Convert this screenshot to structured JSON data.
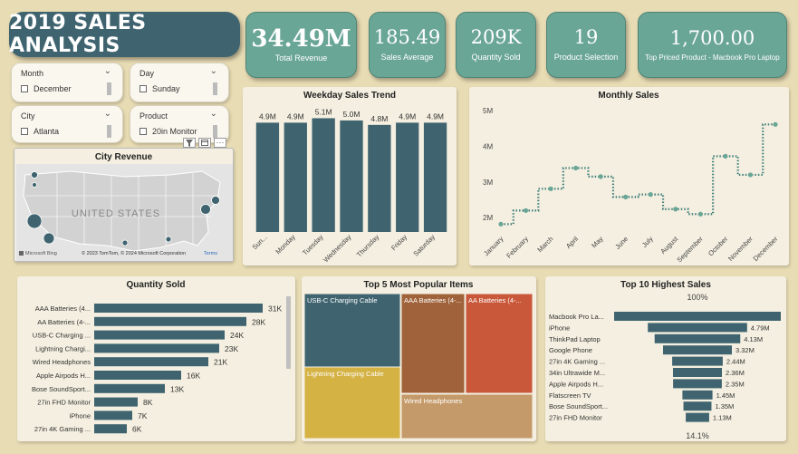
{
  "title": "2019 SALES ANALYSIS",
  "kpis": {
    "total_revenue": {
      "value": "34.49M",
      "label": "Total Revenue"
    },
    "sales_average": {
      "value": "185.49",
      "label": "Sales Average"
    },
    "quantity_sold": {
      "value": "209K",
      "label": "Quantity Sold"
    },
    "product_selection": {
      "value": "19",
      "label": "Product Selection"
    },
    "top_priced": {
      "value": "1,700.00",
      "label": "Top Priced Product - Macbook Pro Laptop"
    }
  },
  "slicers": {
    "month": {
      "label": "Month",
      "option": "December"
    },
    "day": {
      "label": "Day",
      "option": "Sunday"
    },
    "city": {
      "label": "City",
      "option": "Atlanta"
    },
    "product": {
      "label": "Product",
      "option": "20in Monitor"
    }
  },
  "map": {
    "title": "City Revenue",
    "country_label": "UNITED STATES",
    "attribution": "© 2023 TomTom, © 2024 Microsoft Corporation",
    "terms": "Terms",
    "brand": "Microsoft Bing"
  },
  "icons": [
    "filter-icon",
    "focus-mode-icon",
    "more-options-icon",
    "chevron-down-icon",
    "checkbox-icon"
  ],
  "colors": {
    "accent": "#3f6470",
    "kpi": "#6aa696",
    "line": "#3f7f7a",
    "panel": "#f4efe0",
    "background": "#e8dcb4"
  },
  "chart_data": [
    {
      "type": "bar",
      "title": "Weekday Sales Trend",
      "categories": [
        "Sunday",
        "Monday",
        "Tuesday",
        "Wednesday",
        "Thursday",
        "Friday",
        "Saturday"
      ],
      "tick_labels": [
        "Sun...",
        "Monday",
        "Tuesday",
        "Wednesday",
        "Thursday",
        "Friday",
        "Saturday"
      ],
      "values": [
        4.9,
        4.9,
        5.1,
        5.0,
        4.8,
        4.9,
        4.9
      ],
      "data_labels": [
        "4.9M",
        "4.9M",
        "5.1M",
        "5.0M",
        "4.8M",
        "4.9M",
        "4.9M"
      ],
      "ylim": [
        0,
        5.2
      ]
    },
    {
      "type": "line",
      "title": "Monthly Sales",
      "categories": [
        "January",
        "February",
        "March",
        "April",
        "May",
        "June",
        "July",
        "August",
        "September",
        "October",
        "November",
        "December"
      ],
      "values": [
        1.82,
        2.2,
        2.81,
        3.39,
        3.15,
        2.58,
        2.65,
        2.24,
        2.1,
        3.72,
        3.2,
        4.61
      ],
      "yticks": [
        "2M",
        "3M",
        "4M",
        "5M"
      ],
      "ylim": [
        1.6,
        5.1
      ]
    },
    {
      "type": "bar",
      "orientation": "horizontal",
      "title": "Quantity Sold",
      "categories": [
        "AAA Batteries (4...",
        "AA Batteries (4-...",
        "USB-C Charging ...",
        "Lightning Chargi...",
        "Wired Headphones",
        "Apple Airpods H...",
        "Bose SoundSport...",
        "27in FHD Monitor",
        "iPhone",
        "27in 4K Gaming ..."
      ],
      "values": [
        31,
        28,
        24,
        23,
        21,
        16,
        13,
        8,
        7,
        6
      ],
      "data_labels": [
        "31K",
        "28K",
        "24K",
        "23K",
        "21K",
        "16K",
        "13K",
        "8K",
        "7K",
        "6K"
      ],
      "xlim": [
        0,
        31
      ]
    },
    {
      "type": "treemap",
      "title": "Top 5 Most Popular Items",
      "items": [
        {
          "name": "USB-C Charging Cable",
          "color": "#3f6470"
        },
        {
          "name": "Lightning Charging Cable",
          "color": "#d4b244"
        },
        {
          "name": "AAA Batteries (4-...",
          "color": "#a0623a"
        },
        {
          "name": "AA Batteries (4-...",
          "color": "#c9573a"
        },
        {
          "name": "Wired Headphones",
          "color": "#c59a6a"
        }
      ]
    },
    {
      "type": "funnel",
      "title": "Top 10 Highest Sales",
      "categories": [
        "Macbook Pro La...",
        "iPhone",
        "ThinkPad Laptop",
        "Google Phone",
        "27in 4K Gaming ...",
        "34in Ultrawide M...",
        "Apple Airpods H...",
        "Flatscreen TV",
        "Bose SoundSport...",
        "27in FHD Monitor"
      ],
      "values": [
        8.04,
        4.79,
        4.13,
        3.32,
        2.44,
        2.36,
        2.35,
        1.45,
        1.35,
        1.13
      ],
      "data_labels": [
        "",
        "4.79M",
        "4.13M",
        "3.32M",
        "2.44M",
        "2.36M",
        "2.35M",
        "1.45M",
        "1.35M",
        "1.13M"
      ],
      "top_percent": "100%",
      "bottom_percent": "14.1%"
    }
  ]
}
